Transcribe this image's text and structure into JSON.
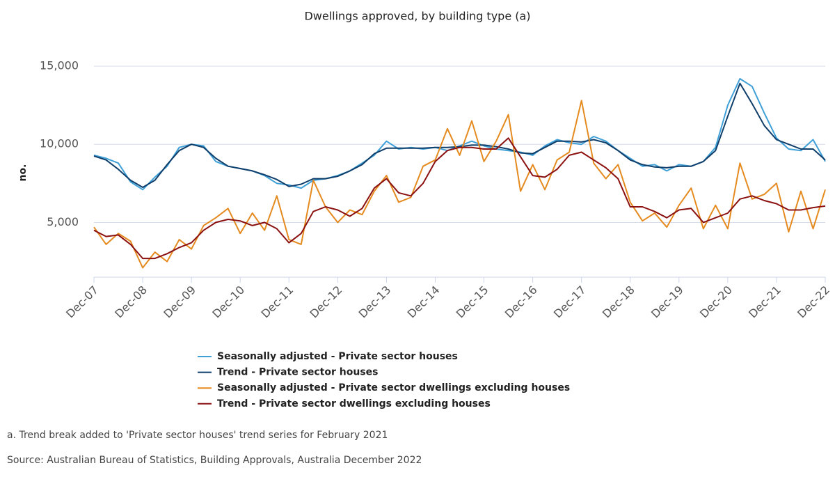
{
  "chart_data": {
    "type": "line",
    "title": "Dwellings approved, by building type (a)",
    "y_label": "no.",
    "categories": [
      "Dec-07",
      null,
      null,
      null,
      "Dec-08",
      null,
      null,
      null,
      "Dec-09",
      null,
      null,
      null,
      "Dec-10",
      null,
      null,
      null,
      "Dec-11",
      null,
      null,
      null,
      "Dec-12",
      null,
      null,
      null,
      "Dec-13",
      null,
      null,
      null,
      "Dec-14",
      null,
      null,
      null,
      "Dec-15",
      null,
      null,
      null,
      "Dec-16",
      null,
      null,
      null,
      "Dec-17",
      null,
      null,
      null,
      "Dec-18",
      null,
      null,
      null,
      "Dec-19",
      null,
      null,
      null,
      "Dec-20",
      null,
      null,
      null,
      "Dec-21",
      null,
      null,
      null,
      "Dec-22"
    ],
    "series": [
      {
        "name": "Seasonally adjusted - Private sector houses",
        "color": "#3fa0d8",
        "values": [
          9300,
          9100,
          8800,
          7600,
          7100,
          7900,
          8600,
          9800,
          10000,
          9900,
          8900,
          8600,
          8450,
          8300,
          8000,
          7500,
          7400,
          7200,
          7700,
          7800,
          8000,
          8300,
          8800,
          9300,
          10200,
          9700,
          9800,
          9700,
          9800,
          9600,
          9900,
          10200,
          9900,
          9700,
          9600,
          9500,
          9300,
          9900,
          10300,
          10100,
          10000,
          10500,
          10200,
          9600,
          9100,
          8600,
          8700,
          8300,
          8700,
          8600,
          8900,
          9800,
          12500,
          14200,
          13700,
          12000,
          10400,
          9700,
          9600,
          10300,
          8900
        ]
      },
      {
        "name": "Trend - Private sector houses",
        "color": "#0f3e6b",
        "values": [
          9250,
          9000,
          8400,
          7700,
          7250,
          7700,
          8700,
          9600,
          10000,
          9800,
          9100,
          8600,
          8450,
          8300,
          8050,
          7750,
          7300,
          7450,
          7800,
          7800,
          7950,
          8300,
          8700,
          9400,
          9750,
          9750,
          9750,
          9750,
          9800,
          9800,
          9850,
          9950,
          9950,
          9850,
          9700,
          9450,
          9400,
          9800,
          10200,
          10200,
          10150,
          10300,
          10100,
          9600,
          9000,
          8700,
          8550,
          8500,
          8600,
          8600,
          8900,
          9600,
          11800,
          13900,
          12600,
          11200,
          10300,
          10000,
          9700,
          9700,
          9000
        ]
      },
      {
        "name": "Seasonally adjusted - Private sector dwellings excluding houses",
        "color": "#e58a1f",
        "values": [
          4700,
          3600,
          4300,
          3800,
          2100,
          3100,
          2500,
          3900,
          3300,
          4800,
          5300,
          5900,
          4300,
          5600,
          4500,
          6700,
          3900,
          3600,
          7700,
          6000,
          5000,
          5800,
          5500,
          7000,
          8000,
          6300,
          6600,
          8600,
          9000,
          11000,
          9300,
          11500,
          8900,
          10200,
          11900,
          7000,
          8700,
          7100,
          9000,
          9500,
          12800,
          8800,
          7800,
          8700,
          6300,
          5100,
          5600,
          4700,
          6100,
          7200,
          4600,
          6100,
          4600,
          8800,
          6500,
          6800,
          7500,
          4400,
          7000,
          4600,
          7100
        ]
      },
      {
        "name": "Trend - Private sector dwellings excluding houses",
        "color": "#8b1010",
        "values": [
          4500,
          4100,
          4200,
          3600,
          2700,
          2700,
          3000,
          3400,
          3700,
          4500,
          5000,
          5200,
          5100,
          4800,
          5000,
          4600,
          3700,
          4300,
          5700,
          6000,
          5800,
          5400,
          5900,
          7200,
          7800,
          6900,
          6700,
          7500,
          8900,
          9600,
          9800,
          9800,
          9700,
          9700,
          10400,
          9200,
          8000,
          7900,
          8400,
          9300,
          9500,
          9000,
          8500,
          7800,
          6000,
          6000,
          5700,
          5300,
          5800,
          5900,
          5000,
          5300,
          5600,
          6500,
          6700,
          6400,
          6200,
          5800,
          5800,
          5950,
          6050
        ]
      }
    ],
    "ylim": [
      1500,
      15500
    ],
    "yticks": [
      {
        "value": 5000,
        "label": "5,000"
      },
      {
        "value": 10000,
        "label": "10,000"
      },
      {
        "value": 15000,
        "label": "15,000"
      }
    ],
    "grid": true,
    "notes": [
      "a. Trend break added to 'Private sector houses' trend series for February 2021",
      "Source: Australian Bureau of Statistics, Building Approvals, Australia December 2022"
    ]
  }
}
